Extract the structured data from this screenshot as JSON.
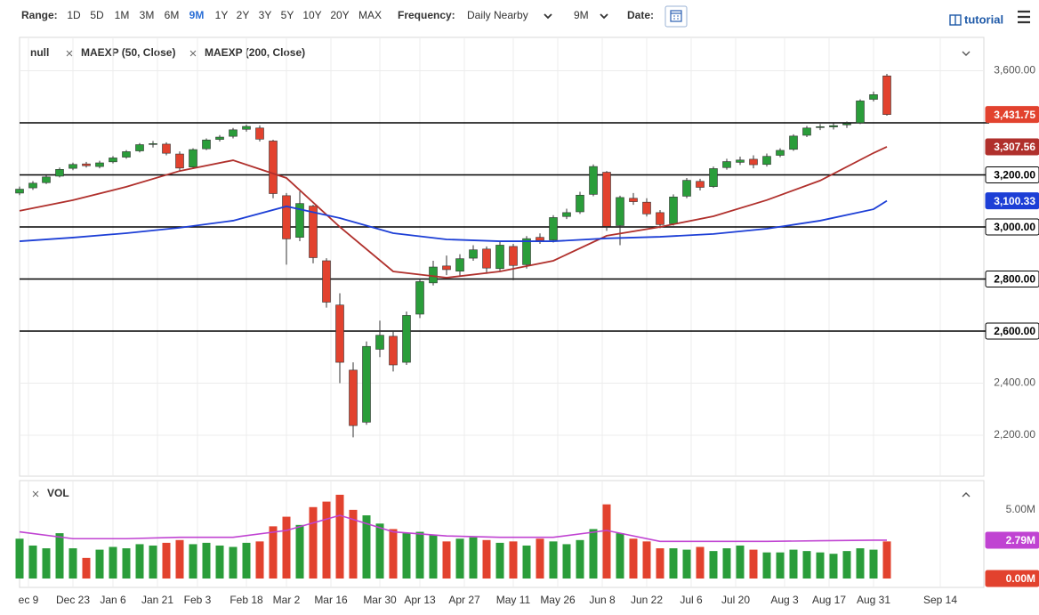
{
  "toolbar": {
    "range_label": "Range:",
    "range_options": [
      "1D",
      "5D",
      "1M",
      "3M",
      "6M",
      "9M",
      "1Y",
      "2Y",
      "3Y",
      "5Y",
      "10Y",
      "20Y",
      "MAX"
    ],
    "active_range": "9M",
    "frequency_label": "Frequency:",
    "frequency": "Daily Nearby",
    "period": "9M",
    "date_label": "Date:",
    "tutorial": "tutorial"
  },
  "chart_data": [
    {
      "type": "candlestick",
      "xlim": [
        0,
        217
      ],
      "xticks": [
        {
          "value": 2,
          "label": "ec 9"
        },
        {
          "value": 12,
          "label": "Dec 23"
        },
        {
          "value": 21,
          "label": "Jan 6"
        },
        {
          "value": 31,
          "label": "Jan 21"
        },
        {
          "value": 40,
          "label": "Feb 3"
        },
        {
          "value": 51,
          "label": "Feb 18"
        },
        {
          "value": 60,
          "label": "Mar 2"
        },
        {
          "value": 70,
          "label": "Mar 16"
        },
        {
          "value": 81,
          "label": "Mar 30"
        },
        {
          "value": 90,
          "label": "Apr 13"
        },
        {
          "value": 100,
          "label": "Apr 27"
        },
        {
          "value": 111,
          "label": "May 11"
        },
        {
          "value": 121,
          "label": "May 26"
        },
        {
          "value": 131,
          "label": "Jun 8"
        },
        {
          "value": 141,
          "label": "Jun 22"
        },
        {
          "value": 151,
          "label": "Jul 6"
        },
        {
          "value": 161,
          "label": "Jul 20"
        },
        {
          "value": 172,
          "label": "Aug 3"
        },
        {
          "value": 182,
          "label": "Aug 17"
        },
        {
          "value": 192,
          "label": "Aug 31"
        },
        {
          "value": 207,
          "label": "Sep 14"
        }
      ],
      "ylim": [
        2135,
        3728
      ],
      "yticks": [
        {
          "value": 2200,
          "label": "2,200.00"
        },
        {
          "value": 2400,
          "label": "2,400.00"
        },
        {
          "value": 2600,
          "label": "2,600.00"
        },
        {
          "value": 2800,
          "label": "2,800.00"
        },
        {
          "value": 3000,
          "label": "3,000.00"
        },
        {
          "value": 3200,
          "label": "3,200.00"
        },
        {
          "value": 3600,
          "label": "3,600.00"
        }
      ],
      "hlines": [
        3400,
        3200,
        3000,
        2800,
        2600
      ],
      "grid": true,
      "last_price": {
        "value": 3431.75,
        "label": "3,431.75",
        "color": "#e2422e"
      },
      "series": [
        {
          "name": "null",
          "up_color": "#2a9d3a",
          "down_color": "#e2422e",
          "x": [
            0,
            3,
            6,
            9,
            12,
            15,
            18,
            21,
            24,
            27,
            30,
            33,
            36,
            39,
            42,
            45,
            48,
            51,
            54,
            57,
            60,
            63,
            66,
            69,
            72,
            75,
            78,
            81,
            84,
            87,
            90,
            93,
            96,
            99,
            102,
            105,
            108,
            111,
            114,
            117,
            120,
            123,
            126,
            129,
            132,
            135,
            138,
            141,
            144,
            147,
            150,
            153,
            156,
            159,
            162,
            165,
            168,
            171,
            174,
            177,
            180,
            183,
            186,
            189,
            192,
            195
          ],
          "open": [
            3130,
            3150,
            3170,
            3195,
            3225,
            3242,
            3232,
            3250,
            3268,
            3292,
            3318,
            3318,
            3280,
            3230,
            3300,
            3336,
            3348,
            3375,
            3380,
            3330,
            3120,
            2960,
            3080,
            2870,
            2700,
            2450,
            2250,
            2530,
            2580,
            2480,
            2665,
            2785,
            2850,
            2830,
            2880,
            2915,
            2840,
            2925,
            2855,
            2960,
            2950,
            3040,
            3058,
            3125,
            3210,
            3005,
            3110,
            3095,
            3055,
            3012,
            3118,
            3175,
            3155,
            3228,
            3248,
            3260,
            3240,
            3275,
            3298,
            3352,
            3382,
            3384,
            3392,
            3400,
            3490,
            3580
          ],
          "high": [
            3155,
            3176,
            3198,
            3228,
            3247,
            3250,
            3254,
            3272,
            3295,
            3322,
            3330,
            3325,
            3290,
            3302,
            3340,
            3353,
            3380,
            3393,
            3390,
            3335,
            3130,
            3136,
            3085,
            2880,
            2745,
            2480,
            2560,
            2640,
            2600,
            2675,
            2800,
            2870,
            2890,
            2895,
            2930,
            2925,
            2945,
            2935,
            2965,
            2975,
            3045,
            3070,
            3135,
            3240,
            3215,
            3120,
            3130,
            3110,
            3065,
            3125,
            3188,
            3185,
            3232,
            3262,
            3270,
            3275,
            3282,
            3302,
            3356,
            3388,
            3395,
            3398,
            3405,
            3490,
            3520,
            3588
          ],
          "low": [
            3122,
            3142,
            3165,
            3190,
            3218,
            3228,
            3225,
            3244,
            3262,
            3286,
            3305,
            3275,
            3214,
            3222,
            3295,
            3328,
            3340,
            3366,
            3328,
            3110,
            2855,
            2945,
            2860,
            2690,
            2400,
            2192,
            2240,
            2500,
            2445,
            2470,
            2650,
            2775,
            2815,
            2810,
            2870,
            2820,
            2830,
            2795,
            2840,
            2935,
            2940,
            3030,
            3050,
            3118,
            2985,
            2930,
            3085,
            3040,
            2995,
            3005,
            3110,
            3140,
            3150,
            3220,
            3238,
            3225,
            3232,
            3268,
            3292,
            3345,
            3372,
            3374,
            3380,
            3395,
            3482,
            3427
          ],
          "close": [
            3145,
            3168,
            3192,
            3221,
            3240,
            3235,
            3246,
            3265,
            3289,
            3316,
            3320,
            3283,
            3226,
            3297,
            3334,
            3345,
            3373,
            3386,
            3337,
            3128,
            2954,
            3090,
            2882,
            2711,
            2480,
            2237,
            2541,
            2584,
            2470,
            2660,
            2790,
            2846,
            2836,
            2878,
            2912,
            2842,
            2930,
            2852,
            2955,
            2948,
            3036,
            3055,
            3122,
            3232,
            3002,
            3113,
            3097,
            3050,
            3009,
            3115,
            3179,
            3152,
            3224,
            3251,
            3257,
            3239,
            3271,
            3294,
            3349,
            3380,
            3385,
            3389,
            3397,
            3484,
            3508,
            3431.75
          ]
        }
      ],
      "lines": [
        {
          "name": "MAEXP (50, Close)",
          "color": "#b0302c",
          "x": [
            0,
            12,
            24,
            36,
            48,
            60,
            72,
            84,
            96,
            108,
            120,
            132,
            144,
            156,
            168,
            180,
            192,
            195
          ],
          "values": [
            3062,
            3103,
            3154,
            3215,
            3256,
            3188,
            3000,
            2829,
            2805,
            2829,
            2870,
            2966,
            3000,
            3041,
            3103,
            3178,
            3284,
            3307.56
          ],
          "last_label": {
            "value": 3307.56,
            "label": "3,307.56"
          }
        },
        {
          "name": "MAEXP (200, Close)",
          "color": "#1d3fd6",
          "x": [
            0,
            12,
            24,
            36,
            48,
            60,
            72,
            84,
            96,
            108,
            120,
            132,
            144,
            156,
            168,
            180,
            192,
            195
          ],
          "values": [
            2945,
            2959,
            2976,
            2997,
            3024,
            3079,
            3034,
            2976,
            2952,
            2945,
            2945,
            2956,
            2962,
            2973,
            2993,
            3024,
            3068,
            3100.33
          ],
          "last_label": {
            "value": 3100.33,
            "label": "3,100.33"
          }
        }
      ]
    },
    {
      "type": "bar",
      "title": "VOL",
      "ylim": [
        0,
        7
      ],
      "yticks": [
        {
          "value": 5,
          "label": "5.00M"
        }
      ],
      "x": [
        0,
        3,
        6,
        9,
        12,
        15,
        18,
        21,
        24,
        27,
        30,
        33,
        36,
        39,
        42,
        45,
        48,
        51,
        54,
        57,
        60,
        63,
        66,
        69,
        72,
        75,
        78,
        81,
        84,
        87,
        90,
        93,
        96,
        99,
        102,
        105,
        108,
        111,
        114,
        117,
        120,
        123,
        126,
        129,
        132,
        135,
        138,
        141,
        144,
        147,
        150,
        153,
        156,
        159,
        162,
        165,
        168,
        171,
        174,
        177,
        180,
        183,
        186,
        189,
        192,
        195
      ],
      "values": [
        2.9,
        2.4,
        2.2,
        3.3,
        2.2,
        1.5,
        2.1,
        2.3,
        2.2,
        2.5,
        2.4,
        2.6,
        2.8,
        2.5,
        2.6,
        2.4,
        2.3,
        2.6,
        2.7,
        3.8,
        4.5,
        3.9,
        5.2,
        5.6,
        6.1,
        5.0,
        4.6,
        4.0,
        3.6,
        3.3,
        3.4,
        3.2,
        2.7,
        2.9,
        3.0,
        2.8,
        2.6,
        2.7,
        2.4,
        2.9,
        2.7,
        2.5,
        2.8,
        3.6,
        5.4,
        3.3,
        2.9,
        2.7,
        2.2,
        2.2,
        2.1,
        2.3,
        2.0,
        2.2,
        2.4,
        2.1,
        1.9,
        1.9,
        2.1,
        2.0,
        1.9,
        1.8,
        2.0,
        2.2,
        2.1,
        2.7
      ],
      "average": {
        "color": "#c043d2",
        "x": [
          0,
          12,
          24,
          36,
          48,
          60,
          72,
          84,
          96,
          108,
          120,
          132,
          144,
          156,
          168,
          180,
          192,
          195
        ],
        "values": [
          3.4,
          2.9,
          2.9,
          3.0,
          3.0,
          3.5,
          4.6,
          3.4,
          3.1,
          3.0,
          3.0,
          3.5,
          2.7,
          2.7,
          2.7,
          2.75,
          2.79,
          2.79
        ],
        "last_label": {
          "value": 2.79,
          "label": "2.79M"
        }
      },
      "current": {
        "value": 0,
        "label": "0.00M",
        "color": "#e2422e"
      }
    }
  ]
}
